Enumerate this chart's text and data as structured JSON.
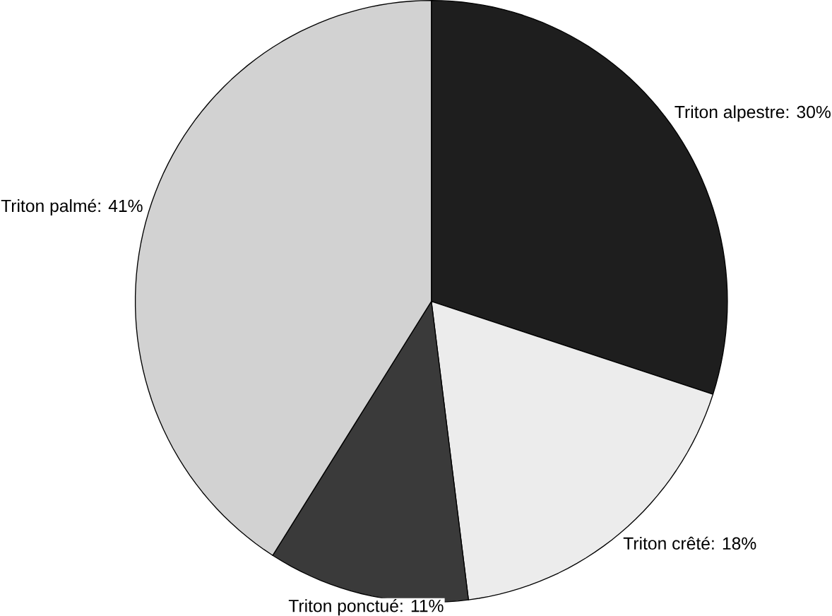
{
  "chart_data": {
    "type": "pie",
    "categories": [
      "Triton alpestre: 30%",
      "Triton crêté: 18%",
      "Triton ponctué:  11%",
      "Triton palmé:  41%"
    ],
    "values": [
      30,
      18,
      11,
      41
    ],
    "colors": [
      "#1e1e1e",
      "#ececec",
      "#3a3a3a",
      "#d2d2d2"
    ]
  }
}
